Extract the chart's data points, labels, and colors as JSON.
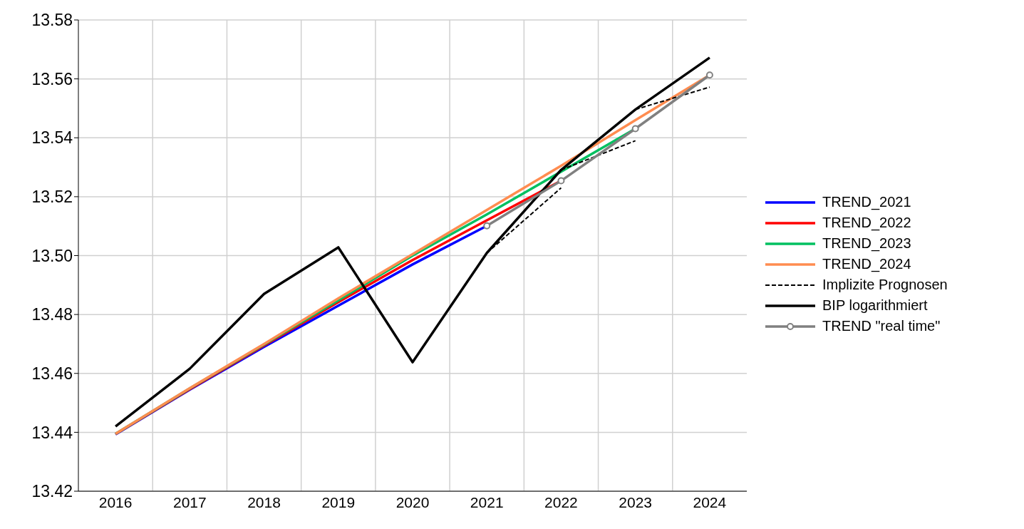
{
  "chart_data": {
    "type": "line",
    "categories": [
      "2016",
      "2017",
      "2018",
      "2019",
      "2020",
      "2021",
      "2022",
      "2023",
      "2024"
    ],
    "ylim": [
      13.42,
      13.58
    ],
    "yticks": [
      13.42,
      13.44,
      13.46,
      13.48,
      {
        "value": 13.5,
        "label": "13.50"
      },
      13.52,
      13.54,
      13.56,
      13.58
    ],
    "grid": true,
    "legend": "right",
    "line_style": "solid",
    "series": [
      {
        "name": "TREND_2021",
        "color": "#0000ff",
        "values": [
          13.4393,
          13.4545,
          13.469,
          13.483,
          13.497,
          13.5101,
          null,
          null,
          null
        ]
      },
      {
        "name": "TREND_2022",
        "color": "#ff0000",
        "values": [
          13.4394,
          13.4547,
          13.4695,
          13.4842,
          13.4985,
          13.512,
          13.5254,
          null,
          null
        ]
      },
      {
        "name": "TREND_2023",
        "color": "#00c060",
        "values": [
          13.4395,
          13.4549,
          13.4698,
          13.4848,
          13.5,
          13.514,
          13.5285,
          13.5431,
          null
        ]
      },
      {
        "name": "TREND_2024",
        "color": "#ff8c50",
        "values": [
          13.4395,
          13.455,
          13.47,
          13.4855,
          13.5005,
          13.5155,
          13.5305,
          13.546,
          13.5613
        ]
      },
      {
        "name": "Implizite Prognosen",
        "color": "#000000",
        "line_style": "dashed",
        "values": [
          null,
          null,
          null,
          null,
          null,
          13.5009,
          13.523,
          null,
          null
        ]
      },
      {
        "color": "#000000",
        "line_style": "dashed",
        "values": [
          null,
          null,
          null,
          null,
          null,
          null,
          13.5291,
          13.539,
          null
        ]
      },
      {
        "color": "#000000",
        "line_style": "dashed",
        "values": [
          null,
          null,
          null,
          null,
          null,
          null,
          null,
          13.5496,
          13.5572
        ]
      },
      {
        "name": "BIP logarithmiert",
        "color": "#000000",
        "values": [
          13.442,
          13.4616,
          13.487,
          13.5028,
          13.4638,
          13.5009,
          13.5291,
          13.5496,
          13.5672
        ]
      },
      {
        "name": "TREND \"real time\"",
        "color": "#808080",
        "marker": "circle",
        "values": [
          null,
          null,
          null,
          null,
          null,
          13.5101,
          13.5254,
          13.5431,
          13.5613
        ]
      }
    ]
  }
}
